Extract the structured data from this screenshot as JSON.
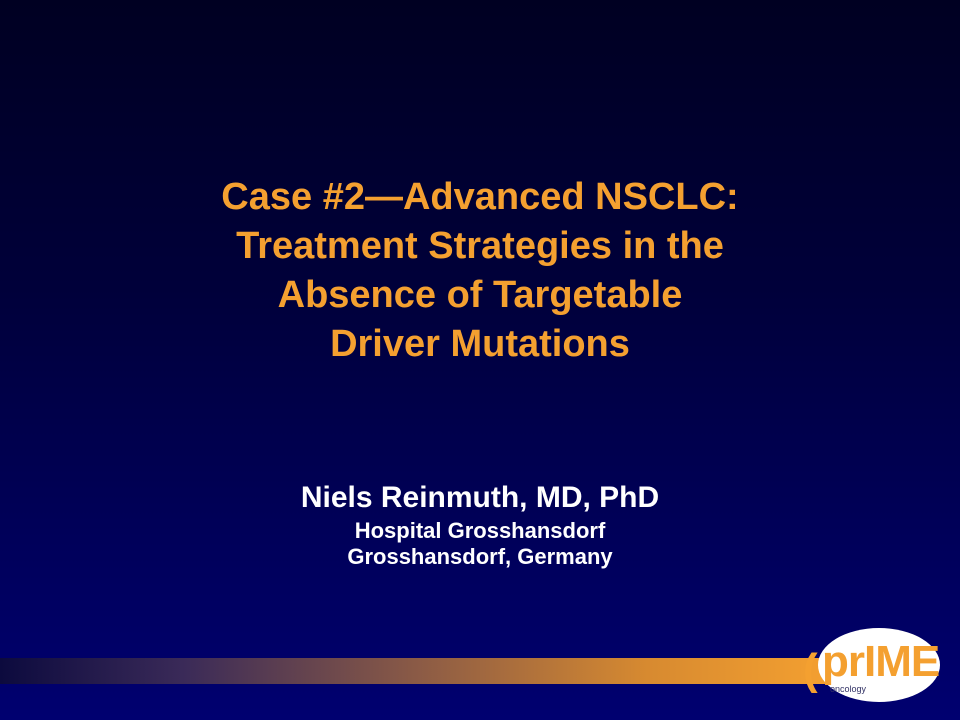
{
  "slide": {
    "title_lines": [
      "Case #2—Advanced NSCLC:",
      "Treatment Strategies in the",
      "Absence of Targetable",
      "Driver Mutations"
    ],
    "author": {
      "name": "Niels Reinmuth, MD, PhD",
      "institution": "Hospital Grosshansdorf",
      "location": "Grosshansdorf, Germany"
    }
  },
  "logo": {
    "pr": "pr",
    "ime": "IME",
    "sub": "oncology"
  },
  "colors": {
    "title": "#F4A030",
    "author": "#FFFFFF",
    "background": "#00004A"
  }
}
